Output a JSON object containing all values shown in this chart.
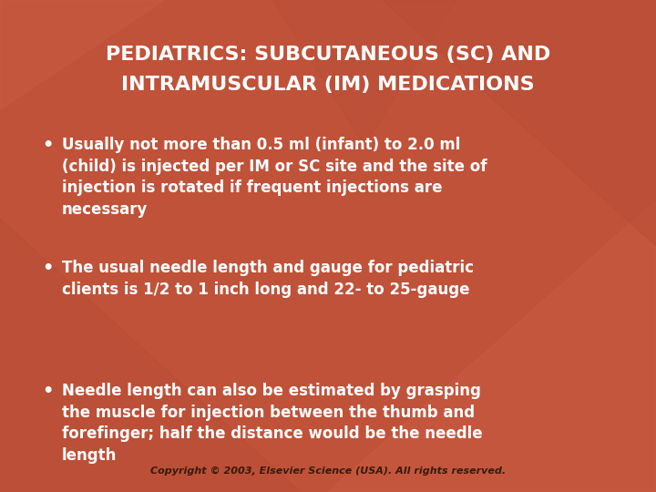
{
  "bg_color": "#C0523A",
  "title_line1": "PEDIATRICS: SUBCUTANEOUS (SC) AND",
  "title_line2": "INTRAMUSCULAR (IM) MEDICATIONS",
  "title_color": "#FFFFFF",
  "title_fontsize": 16,
  "bullet_color": "#FFFFFF",
  "bullet_fontsize": 12,
  "bullets": [
    "Usually not more than 0.5 ml (infant) to 2.0 ml\n(child) is injected per IM or SC site and the site of\ninjection is rotated if frequent injections are\nnecessary",
    "The usual needle length and gauge for pediatric\nclients is 1/2 to 1 inch long and 22- to 25-gauge",
    "Needle length can also be estimated by grasping\nthe muscle for injection between the thumb and\nforefinger; half the distance would be the needle\nlength"
  ],
  "copyright": "Copyright © 2003, Elsevier Science (USA). All rights reserved.",
  "copyright_color": "#3A1A0A",
  "copyright_fontsize": 8,
  "tri_colors": [
    "#CB5D45",
    "#B84C35"
  ],
  "tri_alpha": 0.45
}
